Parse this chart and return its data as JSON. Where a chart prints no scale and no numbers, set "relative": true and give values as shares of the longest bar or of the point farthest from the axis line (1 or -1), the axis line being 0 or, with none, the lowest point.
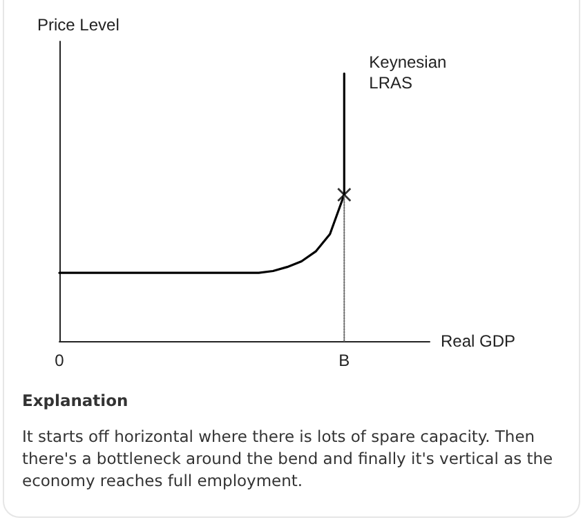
{
  "chart_data": {
    "type": "line",
    "relative": true,
    "xlabel": "Real GDP",
    "ylabel": "Price Level",
    "marker": "none",
    "line_style": "solid",
    "grid": false,
    "categories": [
      "0",
      null,
      null,
      null,
      null,
      null,
      null,
      null,
      null,
      null,
      null,
      null,
      null,
      null,
      null,
      null,
      null,
      null,
      null,
      null,
      "B",
      null,
      null,
      null,
      null,
      null,
      null
    ],
    "series": [
      {
        "color": "#000000",
        "values": [
          0.255,
          0.255,
          0.255,
          0.255,
          0.255,
          0.255,
          0.255,
          0.255,
          0.255,
          0.255,
          0.255,
          0.255,
          0.255,
          0.255,
          0.255,
          0.262,
          0.277,
          0.298,
          0.335,
          0.4,
          0.547,
          null,
          null,
          null,
          null,
          null,
          null
        ]
      },
      {
        "color": "#000000",
        "x": [
          "B",
          "B"
        ],
        "values": [
          0.547,
          1
        ]
      },
      {
        "color": "#666666",
        "line_style": "dotted",
        "x": [
          "B",
          "B"
        ],
        "values": [
          0,
          0.547
        ]
      },
      {
        "type": "scatter",
        "marker": "cross",
        "color": "#000000",
        "x": [
          "B"
        ],
        "values": [
          0.547
        ]
      }
    ],
    "annotations": [
      {
        "text": "Keynesian\nLRAS",
        "x": "B",
        "y": 1
      },
      "Explanation",
      "It starts off horizontal where there is lots of spare capacity. Then there's a bottleneck around the bend and finally it's vertical as the economy reaches full employment."
    ]
  }
}
